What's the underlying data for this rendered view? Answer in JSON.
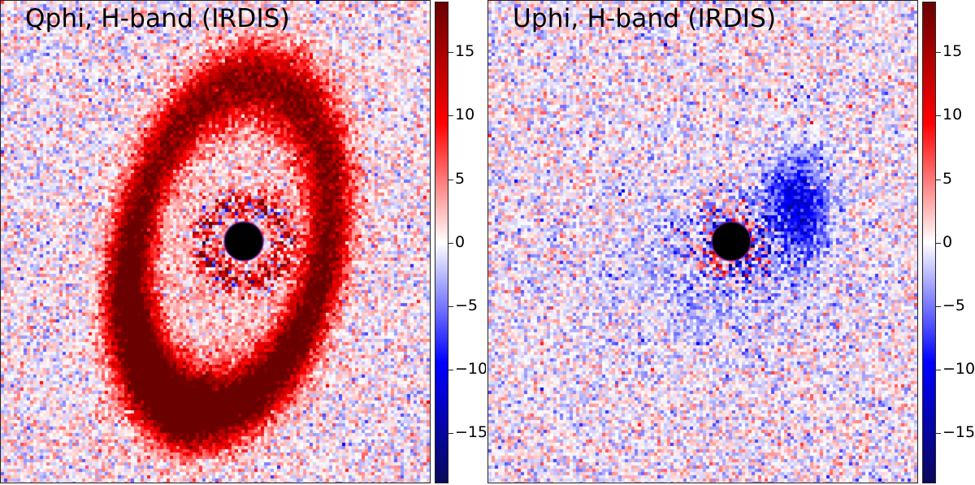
{
  "panels": [
    {
      "id": "qphi",
      "title": "Qphi, H-band (IRDIS)",
      "structure": "ring"
    },
    {
      "id": "uphi",
      "title": "Uphi, H-band (IRDIS)",
      "structure": "residual"
    }
  ],
  "colorbar": {
    "min": -19,
    "max": 19,
    "ticks": [
      15,
      10,
      5,
      0,
      -5,
      -10,
      -15
    ],
    "tick_labels": [
      "15",
      "10",
      "5",
      "0",
      "−5",
      "−10",
      "−15"
    ],
    "colormap": [
      "#0a0a5c",
      "#0000ff",
      "#ffffff",
      "#ff0000",
      "#6b0000"
    ]
  },
  "coronagraph_mask": {
    "color": "#000000",
    "edge_color": "#7a1fa2"
  }
}
